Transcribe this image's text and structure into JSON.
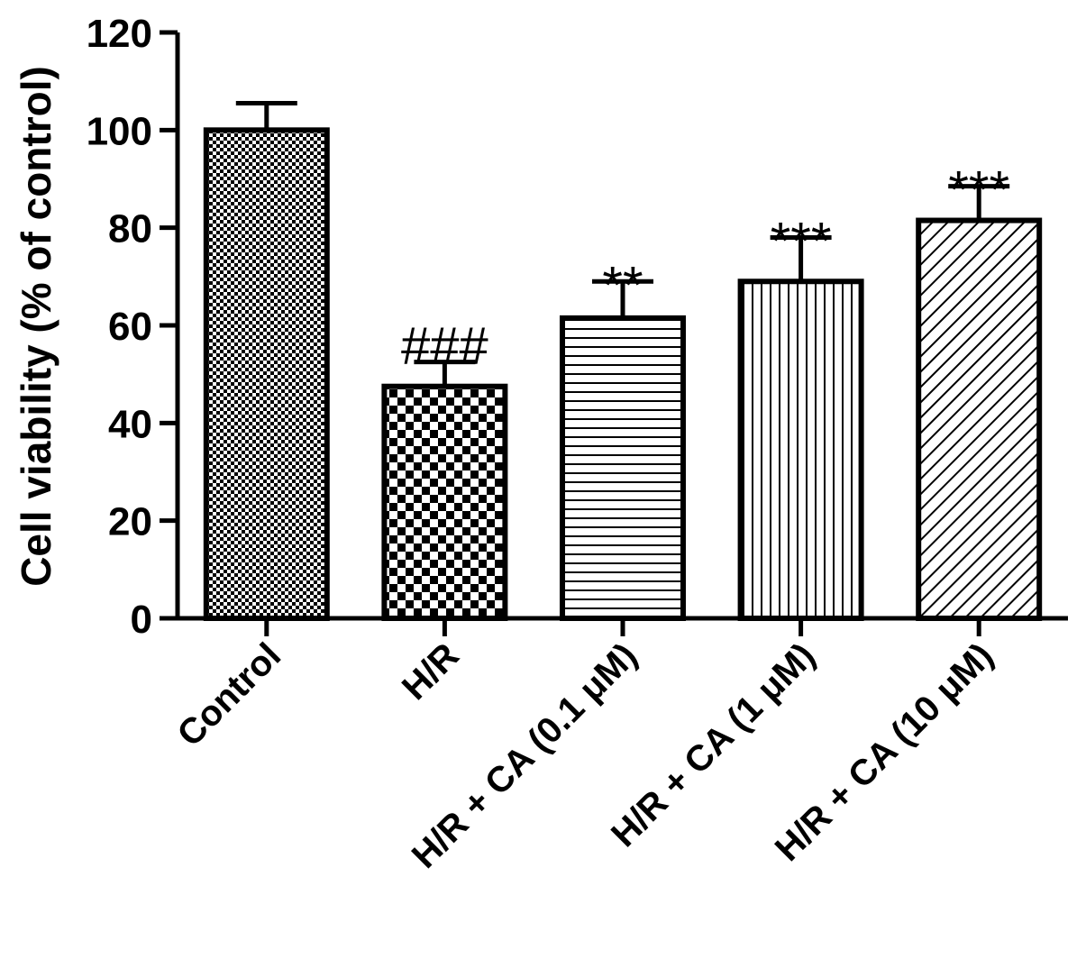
{
  "chart_data": {
    "type": "bar",
    "title": "",
    "xlabel": "",
    "ylabel": "Cell viability (% of control)",
    "ylim": [
      0,
      120
    ],
    "yticks": [
      0,
      20,
      40,
      60,
      80,
      100,
      120
    ],
    "grid": false,
    "legend": "none",
    "categories": [
      "Control",
      "H/R",
      "H/R + CA (0.1 μM)",
      "H/R + CA (1 μM)",
      "H/R + CA (10 μM)"
    ],
    "values": [
      100,
      47.5,
      61.5,
      69,
      81.5
    ],
    "errors": [
      5.5,
      5,
      7.5,
      9,
      7
    ],
    "significance": [
      "",
      "###",
      "**",
      "***",
      "***"
    ],
    "patterns": [
      "fine-check",
      "checkerboard",
      "horizontal-lines",
      "vertical-lines",
      "diagonal-lines"
    ],
    "bar_color": "#000000"
  }
}
